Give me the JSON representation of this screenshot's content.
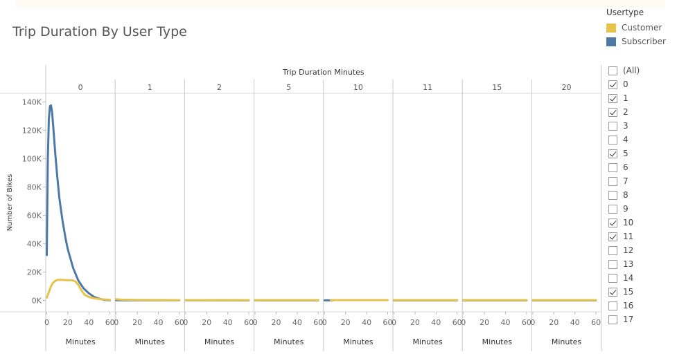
{
  "title": "Trip Duration By User Type",
  "legend": {
    "title": "Usertype",
    "items": [
      {
        "label": "Customer",
        "color": "#E8C34A"
      },
      {
        "label": "Subscriber",
        "color": "#4E79A7"
      }
    ]
  },
  "filter": {
    "items": [
      {
        "label": "(All)",
        "checked": false
      },
      {
        "label": "0",
        "checked": true
      },
      {
        "label": "1",
        "checked": true
      },
      {
        "label": "2",
        "checked": true
      },
      {
        "label": "3",
        "checked": false
      },
      {
        "label": "4",
        "checked": false
      },
      {
        "label": "5",
        "checked": true
      },
      {
        "label": "6",
        "checked": false
      },
      {
        "label": "7",
        "checked": false
      },
      {
        "label": "8",
        "checked": false
      },
      {
        "label": "9",
        "checked": false
      },
      {
        "label": "10",
        "checked": true
      },
      {
        "label": "11",
        "checked": true
      },
      {
        "label": "12",
        "checked": false
      },
      {
        "label": "13",
        "checked": false
      },
      {
        "label": "14",
        "checked": false
      },
      {
        "label": "15",
        "checked": true
      },
      {
        "label": "16",
        "checked": false
      },
      {
        "label": "17",
        "checked": false
      }
    ]
  },
  "chart_data": {
    "type": "line",
    "title": "Trip Duration By User Type",
    "column_header": "Trip Duration Minutes",
    "panels": [
      "0",
      "1",
      "2",
      "5",
      "10",
      "11",
      "15",
      "20"
    ],
    "xlabel": "Minutes",
    "ylabel": "Number of Bikes",
    "xlim": [
      0,
      60
    ],
    "xticks": [
      "0",
      "20",
      "40",
      "60"
    ],
    "ylim": [
      -8000,
      146000
    ],
    "yticks": [
      0,
      20000,
      40000,
      60000,
      80000,
      100000,
      120000,
      140000
    ],
    "ytick_labels": [
      "0K",
      "20K",
      "40K",
      "60K",
      "80K",
      "100K",
      "120K",
      "140K"
    ],
    "grid": false,
    "legend_position": "top-right",
    "series": [
      {
        "name": "Subscriber",
        "color": "#4E79A7",
        "panels": [
          [
            [
              0,
              32000
            ],
            [
              1,
              100000
            ],
            [
              2,
              128000
            ],
            [
              3,
              137000
            ],
            [
              4,
              137500
            ],
            [
              5,
              133000
            ],
            [
              6,
              124000
            ],
            [
              8,
              104000
            ],
            [
              10,
              87000
            ],
            [
              12,
              72000
            ],
            [
              15,
              56000
            ],
            [
              18,
              43000
            ],
            [
              20,
              36000
            ],
            [
              25,
              23000
            ],
            [
              30,
              14000
            ],
            [
              35,
              8500
            ],
            [
              40,
              5000
            ],
            [
              45,
              2500
            ],
            [
              50,
              1200
            ],
            [
              55,
              400
            ],
            [
              60,
              150
            ]
          ],
          [
            [
              0,
              200
            ],
            [
              60,
              150
            ]
          ],
          [
            [
              0,
              150
            ],
            [
              60,
              100
            ]
          ],
          [
            [
              0,
              120
            ],
            [
              60,
              100
            ]
          ],
          [
            [
              0,
              100
            ],
            [
              8,
              100
            ]
          ],
          [
            [
              0,
              100
            ],
            [
              60,
              80
            ]
          ],
          [
            [
              0,
              80
            ],
            [
              60,
              80
            ]
          ],
          [
            [
              0,
              80
            ],
            [
              60,
              80
            ]
          ]
        ]
      },
      {
        "name": "Customer",
        "color": "#E8C34A",
        "panels": [
          [
            [
              0,
              2000
            ],
            [
              2,
              6000
            ],
            [
              4,
              10000
            ],
            [
              6,
              12500
            ],
            [
              8,
              13800
            ],
            [
              10,
              14500
            ],
            [
              14,
              14500
            ],
            [
              20,
              14300
            ],
            [
              24,
              14300
            ],
            [
              27,
              13500
            ],
            [
              30,
              11000
            ],
            [
              33,
              7000
            ],
            [
              36,
              4000
            ],
            [
              40,
              2500
            ],
            [
              45,
              1500
            ],
            [
              50,
              1000
            ],
            [
              55,
              700
            ],
            [
              60,
              500
            ]
          ],
          [
            [
              0,
              900
            ],
            [
              5,
              600
            ],
            [
              20,
              400
            ],
            [
              40,
              350
            ],
            [
              60,
              300
            ]
          ],
          [
            [
              0,
              300
            ],
            [
              60,
              300
            ]
          ],
          [
            [
              0,
              300
            ],
            [
              60,
              300
            ]
          ],
          [
            [
              6,
              300
            ],
            [
              60,
              300
            ]
          ],
          [
            [
              0,
              300
            ],
            [
              60,
              300
            ]
          ],
          [
            [
              0,
              300
            ],
            [
              60,
              300
            ]
          ],
          [
            [
              0,
              300
            ],
            [
              60,
              300
            ]
          ]
        ]
      }
    ]
  }
}
